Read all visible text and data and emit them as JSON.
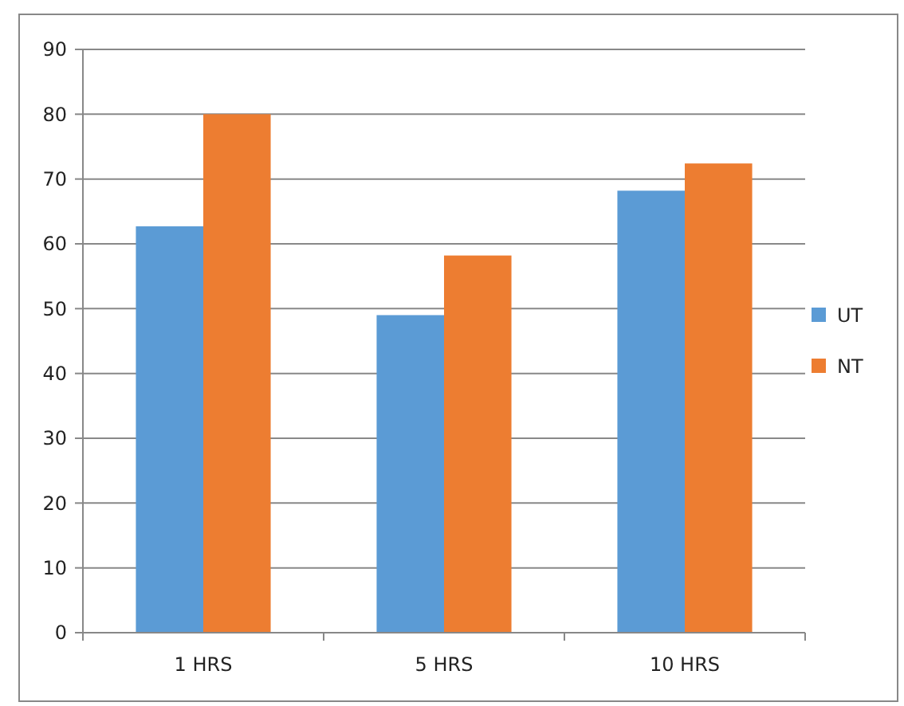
{
  "chart_data": {
    "type": "bar",
    "categories": [
      "1 HRS",
      "5 HRS",
      "10 HRS"
    ],
    "series": [
      {
        "name": "UT",
        "color": "#5b9bd5",
        "values": [
          62.7,
          49,
          68.2
        ]
      },
      {
        "name": "NT",
        "color": "#ed7d31",
        "values": [
          80,
          58.2,
          72.4
        ]
      }
    ],
    "ylim": [
      0,
      90
    ],
    "yticks": [
      0,
      10,
      20,
      30,
      40,
      50,
      60,
      70,
      80,
      90
    ],
    "grid": "y",
    "legend": "right"
  }
}
